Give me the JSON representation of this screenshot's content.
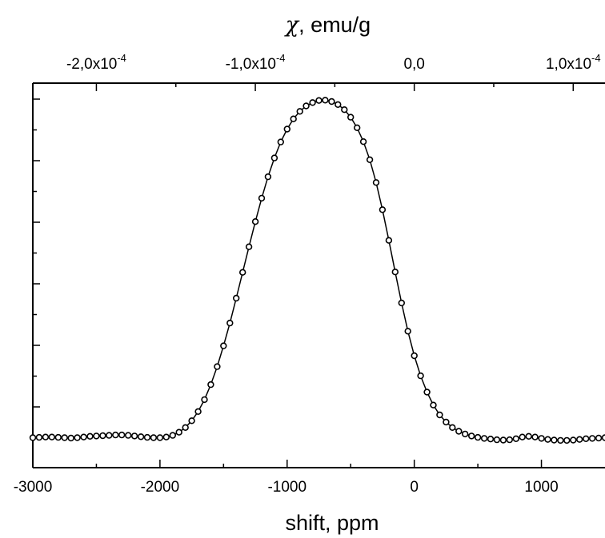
{
  "chart_data": {
    "type": "scatter",
    "title": "",
    "xlabel": "shift, ppm",
    "ylabel": "",
    "top_axis": {
      "label_symbol": "χ",
      "label_rest": ", emu/g",
      "ticks": [
        {
          "base": "-2,0x10",
          "exp": "-4",
          "shift_ppm": -2500
        },
        {
          "base": "-1,0x10",
          "exp": "-4",
          "shift_ppm": -1250
        },
        {
          "base": "0,0",
          "exp": "",
          "shift_ppm": 0
        },
        {
          "base": "1,0x10",
          "exp": "-4",
          "shift_ppm": 1250
        }
      ]
    },
    "xlim": [
      -3000,
      1500
    ],
    "ylim": [
      -0.08,
      1.05
    ],
    "x_ticks": [
      {
        "value": -3000,
        "label": "-3000"
      },
      {
        "value": -2000,
        "label": "-2000"
      },
      {
        "value": -1000,
        "label": "-1000"
      },
      {
        "value": 0,
        "label": "0"
      },
      {
        "value": 1000,
        "label": "1000"
      }
    ],
    "grid": false,
    "legend": "none",
    "series": [
      {
        "kind": "markers",
        "x": [
          -3000,
          -2950,
          -2900,
          -2850,
          -2800,
          -2750,
          -2700,
          -2650,
          -2600,
          -2550,
          -2500,
          -2450,
          -2400,
          -2350,
          -2300,
          -2250,
          -2200,
          -2150,
          -2100,
          -2050,
          -2000,
          -1950,
          -1900,
          -1850,
          -1800,
          -1750,
          -1700,
          -1650,
          -1600,
          -1550,
          -1500,
          -1450,
          -1400,
          -1350,
          -1300,
          -1250,
          -1200,
          -1150,
          -1100,
          -1050,
          -1000,
          -950,
          -900,
          -850,
          -800,
          -750,
          -700,
          -650,
          -600,
          -550,
          -500,
          -450,
          -400,
          -350,
          -300,
          -250,
          -200,
          -150,
          -100,
          -50,
          0,
          50,
          100,
          150,
          200,
          250,
          300,
          350,
          400,
          450,
          500,
          550,
          600,
          650,
          700,
          750,
          800,
          850,
          900,
          950,
          1000,
          1050,
          1100,
          1150,
          1200,
          1250,
          1300,
          1350,
          1400,
          1450,
          1500
        ],
        "y": [
          0.008,
          0.009,
          0.01,
          0.01,
          0.009,
          0.008,
          0.007,
          0.008,
          0.01,
          0.012,
          0.013,
          0.014,
          0.015,
          0.016,
          0.016,
          0.015,
          0.013,
          0.011,
          0.009,
          0.008,
          0.008,
          0.01,
          0.015,
          0.024,
          0.038,
          0.058,
          0.085,
          0.12,
          0.164,
          0.217,
          0.278,
          0.345,
          0.418,
          0.494,
          0.569,
          0.643,
          0.712,
          0.775,
          0.83,
          0.877,
          0.915,
          0.945,
          0.967,
          0.983,
          0.993,
          0.999,
          1.0,
          0.996,
          0.987,
          0.972,
          0.95,
          0.919,
          0.878,
          0.825,
          0.758,
          0.678,
          0.588,
          0.495,
          0.404,
          0.321,
          0.249,
          0.19,
          0.142,
          0.104,
          0.075,
          0.054,
          0.038,
          0.027,
          0.019,
          0.013,
          0.009,
          0.006,
          0.004,
          0.002,
          0.001,
          0.002,
          0.005,
          0.01,
          0.012,
          0.01,
          0.006,
          0.003,
          0.001,
          0.0,
          0.0,
          0.001,
          0.003,
          0.005,
          0.006,
          0.007,
          0.008
        ]
      },
      {
        "kind": "line",
        "x": [
          -3000,
          -2950,
          -2900,
          -2850,
          -2800,
          -2750,
          -2700,
          -2650,
          -2600,
          -2550,
          -2500,
          -2450,
          -2400,
          -2350,
          -2300,
          -2250,
          -2200,
          -2150,
          -2100,
          -2050,
          -2000,
          -1950,
          -1900,
          -1850,
          -1800,
          -1750,
          -1700,
          -1650,
          -1600,
          -1550,
          -1500,
          -1450,
          -1400,
          -1350,
          -1300,
          -1250,
          -1200,
          -1150,
          -1100,
          -1050,
          -1000,
          -950,
          -900,
          -850,
          -800,
          -750,
          -700,
          -650,
          -600,
          -550,
          -500,
          -450,
          -400,
          -350,
          -300,
          -250,
          -200,
          -150,
          -100,
          -50,
          0,
          50,
          100,
          150,
          200,
          250,
          300,
          350,
          400,
          450,
          500,
          550,
          600,
          650,
          700,
          750,
          800,
          850,
          900,
          950,
          1000,
          1050,
          1100,
          1150,
          1200,
          1250,
          1300,
          1350,
          1400,
          1450,
          1500
        ],
        "y": [
          0.008,
          0.009,
          0.01,
          0.01,
          0.009,
          0.008,
          0.007,
          0.008,
          0.01,
          0.012,
          0.013,
          0.014,
          0.015,
          0.016,
          0.016,
          0.015,
          0.013,
          0.011,
          0.009,
          0.008,
          0.008,
          0.01,
          0.015,
          0.024,
          0.038,
          0.058,
          0.085,
          0.12,
          0.164,
          0.217,
          0.278,
          0.345,
          0.418,
          0.494,
          0.569,
          0.643,
          0.712,
          0.775,
          0.83,
          0.877,
          0.915,
          0.945,
          0.967,
          0.983,
          0.993,
          0.999,
          1.0,
          0.996,
          0.987,
          0.972,
          0.95,
          0.919,
          0.878,
          0.825,
          0.758,
          0.678,
          0.588,
          0.495,
          0.404,
          0.321,
          0.249,
          0.19,
          0.142,
          0.104,
          0.075,
          0.054,
          0.038,
          0.027,
          0.019,
          0.013,
          0.009,
          0.006,
          0.004,
          0.002,
          0.001,
          0.002,
          0.005,
          0.01,
          0.012,
          0.01,
          0.006,
          0.003,
          0.001,
          0.0,
          0.0,
          0.001,
          0.003,
          0.005,
          0.006,
          0.007,
          0.008
        ]
      }
    ]
  }
}
